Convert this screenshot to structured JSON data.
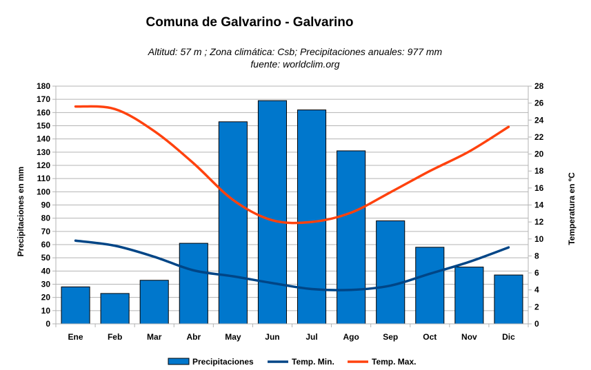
{
  "chart_data": {
    "type": "bar",
    "title": "Comuna de Galvarino - Galvarino",
    "subtitle_line1": "Altitud: 57 m ;  Zona climática: Csb;  Precipitaciones anuales: 977 mm",
    "subtitle_line2": "fuente: worldclim.org",
    "categories": [
      "Ene",
      "Feb",
      "Mar",
      "Abr",
      "May",
      "Jun",
      "Jul",
      "Ago",
      "Sep",
      "Oct",
      "Nov",
      "Dic"
    ],
    "ylabel_left": "Precipitaciones en mm",
    "ylabel_right": "Temperatura en ºC",
    "ylim_left": [
      0,
      180
    ],
    "yticks_left": [
      0,
      10,
      20,
      30,
      40,
      50,
      60,
      70,
      80,
      90,
      100,
      110,
      120,
      130,
      140,
      150,
      160,
      170,
      180
    ],
    "ylim_right": [
      0,
      28
    ],
    "yticks_right": [
      0,
      2,
      4,
      6,
      8,
      10,
      12,
      14,
      16,
      18,
      20,
      22,
      24,
      26,
      28
    ],
    "grid": true,
    "legend_position": "bottom",
    "series": [
      {
        "name": "Precipitaciones",
        "kind": "bar",
        "axis": "left",
        "color": "#0077cc",
        "values": [
          28,
          23,
          33,
          61,
          153,
          169,
          162,
          131,
          78,
          58,
          43,
          37
        ]
      },
      {
        "name": "Temp. Min.",
        "kind": "line",
        "axis": "right",
        "color": "#004586",
        "values": [
          9.8,
          9.2,
          7.9,
          6.3,
          5.6,
          4.8,
          4.1,
          4.0,
          4.5,
          5.9,
          7.3,
          9.0
        ]
      },
      {
        "name": "Temp. Max.",
        "kind": "line",
        "axis": "right",
        "color": "#ff420e",
        "values": [
          25.6,
          25.3,
          22.7,
          18.9,
          14.6,
          12.2,
          12.0,
          13.1,
          15.5,
          18.0,
          20.3,
          23.2
        ]
      }
    ]
  }
}
